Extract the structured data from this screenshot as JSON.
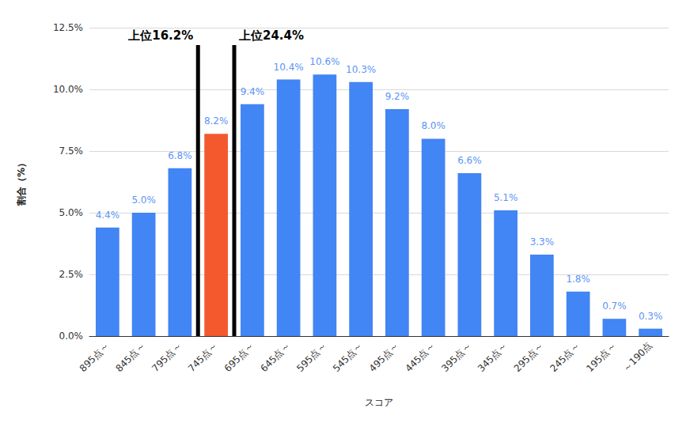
{
  "chart_data": {
    "type": "bar",
    "x_label": "スコア",
    "y_label": "割合（%）",
    "categories": [
      "895点～",
      "845点～",
      "795点～",
      "745点～",
      "695点～",
      "645点～",
      "595点～",
      "545点～",
      "495点～",
      "445点～",
      "395点～",
      "345点～",
      "295点～",
      "245点～",
      "195点～",
      "～190点"
    ],
    "values": [
      4.4,
      5.0,
      6.8,
      8.2,
      9.4,
      10.4,
      10.6,
      10.3,
      9.2,
      8.0,
      6.6,
      5.1,
      3.3,
      1.8,
      0.7,
      0.3
    ],
    "value_labels": [
      "4.4%",
      "5.0%",
      "6.8%",
      "8.2%",
      "9.4%",
      "10.4%",
      "10.6%",
      "10.3%",
      "9.2%",
      "8.0%",
      "6.6%",
      "5.1%",
      "3.3%",
      "1.8%",
      "0.7%",
      "0.3%"
    ],
    "colors": [
      "#4285f4",
      "#4285f4",
      "#4285f4",
      "#f4592e",
      "#4285f4",
      "#4285f4",
      "#4285f4",
      "#4285f4",
      "#4285f4",
      "#4285f4",
      "#4285f4",
      "#4285f4",
      "#4285f4",
      "#4285f4",
      "#4285f4",
      "#4285f4"
    ],
    "ylim": [
      0,
      12.5
    ],
    "yticks": [
      {
        "value": 0,
        "label": "0.0%"
      },
      {
        "value": 2.5,
        "label": "2.5%"
      },
      {
        "value": 5,
        "label": "5.0%"
      },
      {
        "value": 7.5,
        "label": "7.5%"
      },
      {
        "value": 10,
        "label": "10.0%"
      },
      {
        "value": 12.5,
        "label": "12.5%"
      }
    ],
    "grid": true,
    "data_labels": true,
    "annotations": [
      {
        "text": "上位16.2%",
        "between": [
          "795点～",
          "745点～"
        ]
      },
      {
        "text": "上位24.4%",
        "between": [
          "745点～",
          "695点～"
        ]
      }
    ]
  }
}
